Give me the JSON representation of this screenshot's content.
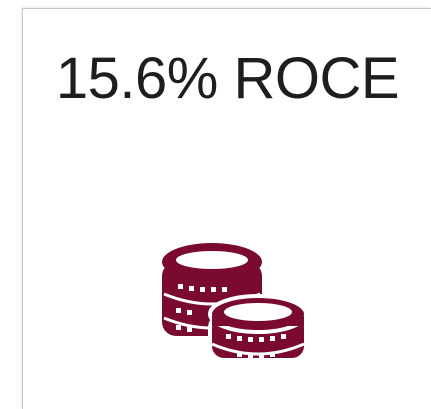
{
  "card": {
    "title": "15.6% ROCE"
  }
}
